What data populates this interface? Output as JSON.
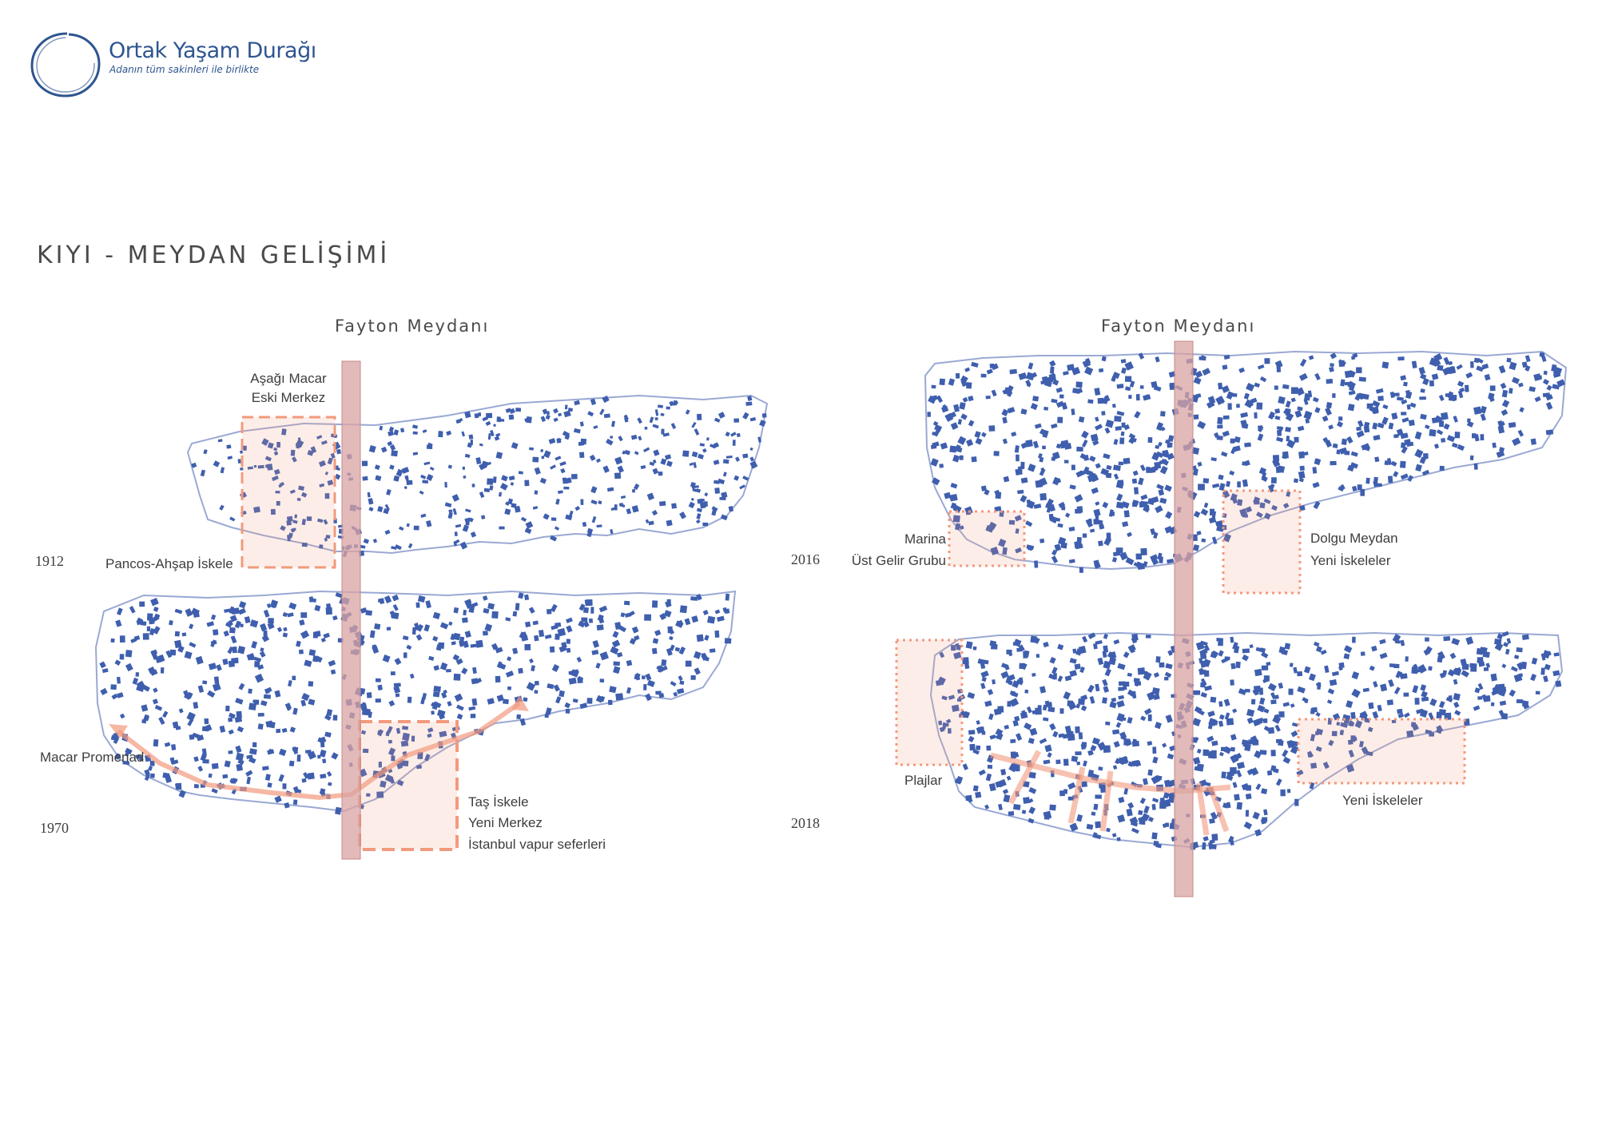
{
  "logo": {
    "title": "Ortak Yaşam Durağı",
    "subtitle": "Adanın tüm sakinleri ile birlikte",
    "ring_color": "#2e5590"
  },
  "page_title": "KIYI - MEYDAN GELİŞİMİ",
  "colors": {
    "buildings": "#3f5fae",
    "coast": "#9aa9d4",
    "highlight": "#f29a7d",
    "axis": "#d9a3a3"
  },
  "left": {
    "axis_label": "Fayton Meydanı",
    "map_1912": {
      "year": "1912",
      "zone_label_1": "Aşağı Macar",
      "zone_label_2": "Eski Merkez",
      "pier_label": "Pancos-Ahşap İskele"
    },
    "map_1970": {
      "year": "1970",
      "promenade_label": "Macar Promenad",
      "new_label_1": "Taş İskele",
      "new_label_2": "Yeni Merkez",
      "new_label_3": "İstanbul vapur seferleri"
    }
  },
  "right": {
    "axis_label": "Fayton Meydanı",
    "map_2016": {
      "year": "2016",
      "marina_1": "Marina",
      "marina_2": "Üst Gelir Grubu",
      "fill_1": "Dolgu Meydan",
      "fill_2": "Yeni İskeleler"
    },
    "map_2018": {
      "year": "2018",
      "beaches": "Plajlar",
      "piers": "Yeni İskeleler"
    }
  }
}
